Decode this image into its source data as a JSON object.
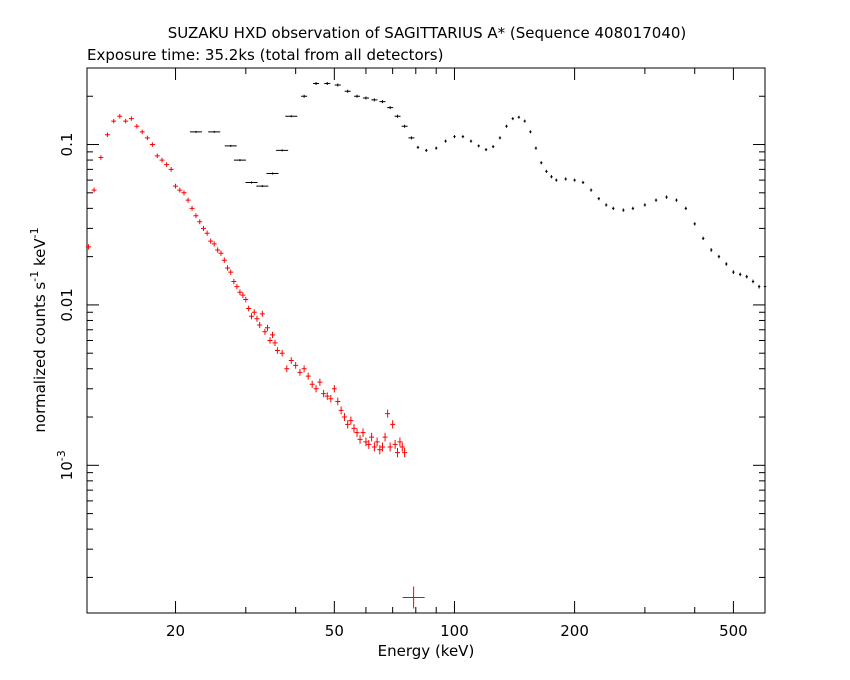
{
  "chart_data": {
    "type": "scatter",
    "title": "SUZAKU HXD observation of SAGITTARIUS A* (Sequence 408017040)",
    "subtitle": "Exposure time: 35.2ks (total from all detectors)",
    "xlabel": "Energy (keV)",
    "ylabel_main": "normalized counts s",
    "ylabel_exp1": "-1",
    "ylabel_mid": " keV",
    "ylabel_exp2": "-1",
    "xscale": "log",
    "yscale": "log",
    "xlim": [
      12,
      600
    ],
    "ylim": [
      0.00012,
      0.3
    ],
    "x_ticks": [
      {
        "value": 20,
        "label": "20"
      },
      {
        "value": 50,
        "label": "50"
      },
      {
        "value": 100,
        "label": "100"
      },
      {
        "value": 200,
        "label": "200"
      },
      {
        "value": 500,
        "label": "500"
      }
    ],
    "y_ticks": [
      {
        "value": 0.1,
        "label": "0.1"
      },
      {
        "value": 0.01,
        "label": "0.01"
      },
      {
        "value": 0.001,
        "label": "10",
        "exp": "-3"
      }
    ],
    "series": [
      {
        "color": "#ff0000",
        "points": [
          [
            12.1,
            0.023
          ],
          [
            12.5,
            0.052
          ],
          [
            13.0,
            0.083
          ],
          [
            13.5,
            0.115
          ],
          [
            14.0,
            0.14
          ],
          [
            14.5,
            0.15
          ],
          [
            15.0,
            0.14
          ],
          [
            15.5,
            0.145
          ],
          [
            16.0,
            0.13
          ],
          [
            16.5,
            0.12
          ],
          [
            17.0,
            0.11
          ],
          [
            17.5,
            0.1
          ],
          [
            18.0,
            0.085
          ],
          [
            18.5,
            0.08
          ],
          [
            19.0,
            0.075
          ],
          [
            19.5,
            0.07
          ],
          [
            20.0,
            0.055
          ],
          [
            20.5,
            0.052
          ],
          [
            21.0,
            0.05
          ],
          [
            21.5,
            0.045
          ],
          [
            22.0,
            0.04
          ],
          [
            22.5,
            0.036
          ],
          [
            23.0,
            0.033
          ],
          [
            23.5,
            0.03
          ],
          [
            24.0,
            0.028
          ],
          [
            24.5,
            0.025
          ],
          [
            25.0,
            0.024
          ],
          [
            25.5,
            0.022
          ],
          [
            26.0,
            0.021
          ],
          [
            26.5,
            0.019
          ],
          [
            27.0,
            0.017
          ],
          [
            27.5,
            0.016
          ],
          [
            28.0,
            0.014
          ],
          [
            28.5,
            0.013
          ],
          [
            29.0,
            0.012
          ],
          [
            29.5,
            0.0115
          ],
          [
            30.0,
            0.0108
          ],
          [
            30.5,
            0.0095
          ],
          [
            31.0,
            0.0085
          ],
          [
            31.5,
            0.009
          ],
          [
            32.0,
            0.0082
          ],
          [
            32.5,
            0.0075
          ],
          [
            33.0,
            0.0088
          ],
          [
            33.5,
            0.0068
          ],
          [
            34.0,
            0.0072
          ],
          [
            34.5,
            0.006
          ],
          [
            35.0,
            0.0065
          ],
          [
            35.5,
            0.0058
          ],
          [
            36.0,
            0.0052
          ],
          [
            37.0,
            0.005
          ],
          [
            38.0,
            0.004
          ],
          [
            39.0,
            0.0045
          ],
          [
            40.0,
            0.0042
          ],
          [
            41.0,
            0.0038
          ],
          [
            42.0,
            0.004
          ],
          [
            43.0,
            0.0036
          ],
          [
            44.0,
            0.0032
          ],
          [
            45.0,
            0.003
          ],
          [
            46.0,
            0.0033
          ],
          [
            47.0,
            0.0028
          ],
          [
            48.0,
            0.0027
          ],
          [
            49.0,
            0.0026
          ],
          [
            50.0,
            0.003
          ],
          [
            51.0,
            0.0025
          ],
          [
            52.0,
            0.0022
          ],
          [
            53.0,
            0.002
          ],
          [
            54.0,
            0.0018
          ],
          [
            55.0,
            0.0019
          ],
          [
            56.0,
            0.0017
          ],
          [
            57.0,
            0.0016
          ],
          [
            58.0,
            0.00145
          ],
          [
            59.0,
            0.0016
          ],
          [
            60.0,
            0.0014
          ],
          [
            61.0,
            0.00135
          ],
          [
            62.0,
            0.0015
          ],
          [
            63.0,
            0.0013
          ],
          [
            64.0,
            0.0014
          ],
          [
            65.0,
            0.00125
          ],
          [
            66.0,
            0.0013
          ],
          [
            67.0,
            0.0015
          ],
          [
            68.0,
            0.0021
          ],
          [
            69.0,
            0.0013
          ],
          [
            70.0,
            0.0018
          ],
          [
            71.0,
            0.00135
          ],
          [
            72.0,
            0.0012
          ],
          [
            73.0,
            0.0014
          ],
          [
            74.0,
            0.0013
          ],
          [
            75.0,
            0.0012
          ],
          [
            79.0,
            0.00015
          ]
        ]
      },
      {
        "color": "#000000",
        "points": [
          [
            22.5,
            0.12
          ],
          [
            25.0,
            0.12
          ],
          [
            27.5,
            0.098
          ],
          [
            29.0,
            0.08
          ],
          [
            31.0,
            0.058
          ],
          [
            33.0,
            0.055
          ],
          [
            35.0,
            0.066
          ],
          [
            37.0,
            0.092
          ],
          [
            39.0,
            0.15
          ],
          [
            42.0,
            0.2
          ],
          [
            45.0,
            0.24
          ],
          [
            48.0,
            0.24
          ],
          [
            51.0,
            0.235
          ],
          [
            54.0,
            0.215
          ],
          [
            57.0,
            0.2
          ],
          [
            60.0,
            0.195
          ],
          [
            63.0,
            0.19
          ],
          [
            66.0,
            0.185
          ],
          [
            69.0,
            0.17
          ],
          [
            72.0,
            0.15
          ],
          [
            75.0,
            0.13
          ],
          [
            78.0,
            0.11
          ],
          [
            81.0,
            0.096
          ],
          [
            85.0,
            0.092
          ],
          [
            90.0,
            0.095
          ],
          [
            95.0,
            0.105
          ],
          [
            100.0,
            0.112
          ],
          [
            105.0,
            0.112
          ],
          [
            110.0,
            0.105
          ],
          [
            115.0,
            0.098
          ],
          [
            120.0,
            0.093
          ],
          [
            125.0,
            0.097
          ],
          [
            130.0,
            0.11
          ],
          [
            135.0,
            0.13
          ],
          [
            140.0,
            0.145
          ],
          [
            145.0,
            0.148
          ],
          [
            150.0,
            0.14
          ],
          [
            155.0,
            0.12
          ],
          [
            160.0,
            0.095
          ],
          [
            165.0,
            0.077
          ],
          [
            170.0,
            0.068
          ],
          [
            175.0,
            0.063
          ],
          [
            180.0,
            0.06
          ],
          [
            190.0,
            0.061
          ],
          [
            200.0,
            0.06
          ],
          [
            210.0,
            0.058
          ],
          [
            220.0,
            0.052
          ],
          [
            230.0,
            0.046
          ],
          [
            240.0,
            0.042
          ],
          [
            250.0,
            0.04
          ],
          [
            265.0,
            0.039
          ],
          [
            280.0,
            0.04
          ],
          [
            300.0,
            0.042
          ],
          [
            320.0,
            0.045
          ],
          [
            340.0,
            0.047
          ],
          [
            360.0,
            0.045
          ],
          [
            380.0,
            0.04
          ],
          [
            400.0,
            0.032
          ],
          [
            420.0,
            0.026
          ],
          [
            440.0,
            0.022
          ],
          [
            460.0,
            0.02
          ],
          [
            480.0,
            0.018
          ],
          [
            500.0,
            0.016
          ],
          [
            520.0,
            0.0155
          ],
          [
            540.0,
            0.015
          ],
          [
            560.0,
            0.014
          ],
          [
            580.0,
            0.013
          ],
          [
            600.0,
            0.013
          ]
        ]
      }
    ]
  }
}
